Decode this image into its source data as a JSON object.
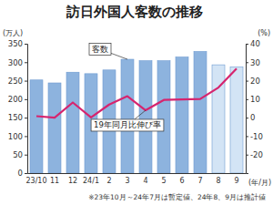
{
  "chart_data": {
    "type": "bar",
    "title": "訪日外国人客数の推移",
    "y_label": "(万人)",
    "y2_label": "(%)",
    "x_label": "(年/月)",
    "note": "※23年10月～24年7月は暫定値、24年8、9月は推計値",
    "categories": [
      "23/10",
      "11",
      "12",
      "24/1",
      "2",
      "3",
      "4",
      "5",
      "6",
      "7",
      "8",
      "9"
    ],
    "ylim": [
      0,
      350
    ],
    "yticks": [
      0,
      50,
      100,
      150,
      200,
      250,
      300,
      350
    ],
    "y2lim": [
      -30,
      40
    ],
    "y2ticks": [
      -20,
      -10,
      0,
      10,
      20,
      30,
      40
    ],
    "grid": false,
    "series": [
      {
        "name": "客数",
        "type": "bar",
        "colors": [
          "#8db3de",
          "#8db3de",
          "#8db3de",
          "#8db3de",
          "#8db3de",
          "#8db3de",
          "#8db3de",
          "#8db3de",
          "#8db3de",
          "#8db3de",
          "#d3e4f5",
          "#d3e4f5"
        ],
        "values": [
          252,
          244,
          273,
          269,
          279,
          308,
          304,
          304,
          314,
          329,
          293,
          287
        ]
      },
      {
        "name": "19年同月比伸び率",
        "type": "line",
        "axis": "y2",
        "color": "#d6246e",
        "values": [
          0.8,
          0.0,
          8.2,
          0.1,
          7.1,
          11.6,
          4.0,
          9.6,
          9.9,
          10.1,
          16.3,
          26.6
        ]
      }
    ]
  }
}
